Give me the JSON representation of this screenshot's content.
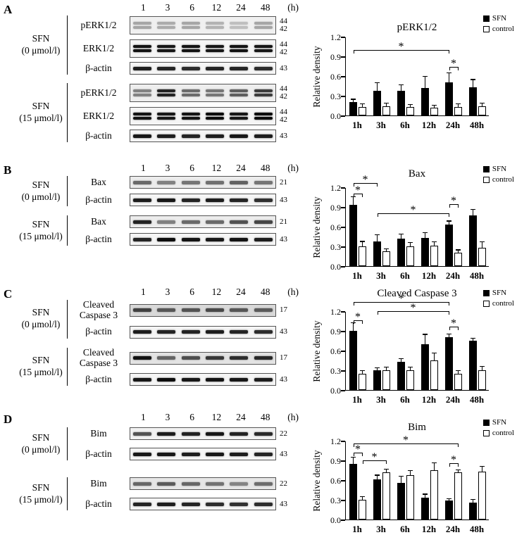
{
  "figure": {
    "time_points": [
      "1",
      "3",
      "6",
      "12",
      "24",
      "48"
    ],
    "time_unit": "(h)",
    "panels": [
      {
        "label": "A",
        "groups": [
          {
            "treatment_line1": "SFN",
            "treatment_line2": "(0 μmol/l)",
            "rows": [
              {
                "protein": "pERK1/2",
                "kda": [
                  "44",
                  "42"
                ],
                "doublet": true,
                "bg": "#f0f0f0",
                "intensities": [
                  0.3,
                  0.28,
                  0.3,
                  0.25,
                  0.2,
                  0.3
                ]
              },
              {
                "protein": "ERK1/2",
                "kda": [
                  "44",
                  "42"
                ],
                "doublet": true,
                "bg": "#f5f5f5",
                "intensities": [
                  0.92,
                  0.9,
                  0.92,
                  0.9,
                  0.92,
                  0.9
                ]
              },
              {
                "protein": "β-actin",
                "kda": [
                  "43"
                ],
                "doublet": false,
                "bg": "#f5f5f5",
                "intensities": [
                  0.88,
                  0.85,
                  0.82,
                  0.85,
                  0.85,
                  0.82
                ]
              }
            ]
          },
          {
            "treatment_line1": "SFN",
            "treatment_line2": "(15 μmol/l)",
            "rows": [
              {
                "protein": "pERK1/2",
                "kda": [
                  "44",
                  "42"
                ],
                "doublet": true,
                "bg": "#eeeeee",
                "intensities": [
                  0.45,
                  0.85,
                  0.55,
                  0.5,
                  0.6,
                  0.75
                ]
              },
              {
                "protein": "ERK1/2",
                "kda": [
                  "44",
                  "42"
                ],
                "doublet": true,
                "bg": "#f5f5f5",
                "intensities": [
                  0.92,
                  0.9,
                  0.92,
                  0.95,
                  0.9,
                  0.95
                ]
              },
              {
                "protein": "β-actin",
                "kda": [
                  "43"
                ],
                "doublet": false,
                "bg": "#f5f5f5",
                "intensities": [
                  0.9,
                  0.88,
                  0.85,
                  0.88,
                  0.9,
                  0.88
                ]
              }
            ]
          }
        ]
      },
      {
        "label": "B",
        "groups": [
          {
            "treatment_line1": "SFN",
            "treatment_line2": "(0 μmol/l)",
            "rows": [
              {
                "protein": "Bax",
                "kda": [
                  "21"
                ],
                "doublet": false,
                "bg": "#ececec",
                "intensities": [
                  0.55,
                  0.45,
                  0.5,
                  0.52,
                  0.58,
                  0.5
                ]
              },
              {
                "protein": "β-actin",
                "kda": [
                  "43"
                ],
                "doublet": false,
                "bg": "#f5f5f5",
                "intensities": [
                  0.88,
                  0.9,
                  0.85,
                  0.88,
                  0.85,
                  0.8
                ]
              }
            ]
          },
          {
            "treatment_line1": "SFN",
            "treatment_line2": "(15 μmol/l)",
            "rows": [
              {
                "protein": "Bax",
                "kda": [
                  "21"
                ],
                "doublet": false,
                "bg": "#ececec",
                "intensities": [
                  0.85,
                  0.45,
                  0.55,
                  0.55,
                  0.65,
                  0.7
                ]
              },
              {
                "protein": "β-actin",
                "kda": [
                  "43"
                ],
                "doublet": false,
                "bg": "#f5f5f5",
                "intensities": [
                  0.85,
                  0.95,
                  0.92,
                  0.9,
                  0.92,
                  0.88
                ]
              }
            ]
          }
        ]
      },
      {
        "label": "C",
        "groups": [
          {
            "treatment_line1": "SFN",
            "treatment_line2": "(0 μmol/l)",
            "rows": [
              {
                "protein": "Cleaved Caspase 3",
                "kda": [
                  "17"
                ],
                "doublet": false,
                "bg": "#d9d9d9",
                "intensities": [
                  0.7,
                  0.6,
                  0.62,
                  0.66,
                  0.6,
                  0.58
                ]
              },
              {
                "protein": "β-actin",
                "kda": [
                  "43"
                ],
                "doublet": false,
                "bg": "#f5f5f5",
                "intensities": [
                  0.88,
                  0.85,
                  0.85,
                  0.88,
                  0.85,
                  0.82
                ]
              }
            ]
          },
          {
            "treatment_line1": "SFN",
            "treatment_line2": "(15 μmol/l)",
            "rows": [
              {
                "protein": "Cleaved Caspase 3",
                "kda": [
                  "17"
                ],
                "doublet": false,
                "bg": "#e3e3e3",
                "intensities": [
                  0.92,
                  0.55,
                  0.65,
                  0.75,
                  0.8,
                  0.82
                ]
              },
              {
                "protein": "β-actin",
                "kda": [
                  "43"
                ],
                "doublet": false,
                "bg": "#f5f5f5",
                "intensities": [
                  0.9,
                  0.95,
                  0.9,
                  0.92,
                  0.9,
                  0.88
                ]
              }
            ]
          }
        ]
      },
      {
        "label": "D",
        "groups": [
          {
            "treatment_line1": "SFN",
            "treatment_line2": "(0 μmol/l)",
            "rows": [
              {
                "protein": "Bim",
                "kda": [
                  "22"
                ],
                "doublet": false,
                "bg": "#f2f2f2",
                "intensities": [
                  0.65,
                  0.88,
                  0.85,
                  0.9,
                  0.85,
                  0.82
                ]
              },
              {
                "protein": "β-actin",
                "kda": [
                  "43"
                ],
                "doublet": false,
                "bg": "#f5f5f5",
                "intensities": [
                  0.9,
                  0.9,
                  0.88,
                  0.9,
                  0.88,
                  0.85
                ]
              }
            ]
          },
          {
            "treatment_line1": "SFN",
            "treatment_line2": "(15 μmol/l)",
            "rows": [
              {
                "protein": "Bim",
                "kda": [
                  "22"
                ],
                "doublet": false,
                "bg": "#e6e6e6",
                "intensities": [
                  0.55,
                  0.6,
                  0.55,
                  0.5,
                  0.42,
                  0.52
                ]
              },
              {
                "protein": "β-actin",
                "kda": [
                  "43"
                ],
                "doublet": false,
                "bg": "#f5f5f5",
                "intensities": [
                  0.85,
                  0.88,
                  0.85,
                  0.82,
                  0.8,
                  0.82
                ]
              }
            ]
          }
        ]
      }
    ]
  },
  "chart_data": [
    {
      "type": "bar",
      "panel": "A",
      "title": "pERK1/2",
      "ylabel": "Relative density",
      "ylim": [
        0,
        1.2
      ],
      "yticks": [
        "0.0",
        "0.3",
        "0.6",
        "0.9",
        "1.2"
      ],
      "categories": [
        "1h",
        "3h",
        "6h",
        "12h",
        "24h",
        "48h"
      ],
      "legend_position": "top-right",
      "series": [
        {
          "name": "SFN",
          "fill": "#000000",
          "values": [
            0.2,
            0.38,
            0.37,
            0.42,
            0.5,
            0.43
          ],
          "errors": [
            0.05,
            0.12,
            0.1,
            0.18,
            0.15,
            0.12
          ]
        },
        {
          "name": "control",
          "fill": "#ffffff",
          "values": [
            0.13,
            0.14,
            0.13,
            0.12,
            0.13,
            0.14
          ],
          "errors": [
            0.05,
            0.05,
            0.04,
            0.04,
            0.05,
            0.05
          ]
        }
      ],
      "significance": [
        {
          "x1": [
            0,
            0
          ],
          "x2": [
            4,
            0
          ],
          "y": 1.0,
          "label": "*"
        },
        {
          "x1": [
            4,
            0
          ],
          "x2": [
            4,
            1
          ],
          "y": 0.74,
          "label": "*"
        }
      ]
    },
    {
      "type": "bar",
      "panel": "B",
      "title": "Bax",
      "ylabel": "Relative density",
      "ylim": [
        0,
        1.2
      ],
      "yticks": [
        "0.0",
        "0.3",
        "0.6",
        "0.9",
        "1.2"
      ],
      "categories": [
        "1h",
        "3h",
        "6h",
        "12h",
        "24h",
        "48h"
      ],
      "legend_position": "top-right",
      "series": [
        {
          "name": "SFN",
          "fill": "#000000",
          "values": [
            0.93,
            0.38,
            0.42,
            0.43,
            0.63,
            0.77
          ],
          "errors": [
            0.13,
            0.1,
            0.07,
            0.08,
            0.06,
            0.1
          ]
        },
        {
          "name": "control",
          "fill": "#ffffff",
          "values": [
            0.3,
            0.22,
            0.3,
            0.31,
            0.2,
            0.28
          ],
          "errors": [
            0.08,
            0.05,
            0.06,
            0.06,
            0.05,
            0.09
          ]
        }
      ],
      "significance": [
        {
          "x1": [
            0,
            0
          ],
          "x2": [
            0,
            1
          ],
          "y": 1.1,
          "label": "*"
        },
        {
          "x1": [
            0,
            0
          ],
          "x2": [
            1,
            0
          ],
          "y": 1.26,
          "label": "*"
        },
        {
          "x1": [
            1,
            0
          ],
          "x2": [
            4,
            0
          ],
          "y": 0.8,
          "label": "*"
        },
        {
          "x1": [
            4,
            0
          ],
          "x2": [
            4,
            1
          ],
          "y": 0.94,
          "label": "*"
        }
      ]
    },
    {
      "type": "bar",
      "panel": "C",
      "title": "Cleaved Caspase 3",
      "ylabel": "Relative density",
      "ylim": [
        0,
        1.2
      ],
      "yticks": [
        "0.0",
        "0.3",
        "0.6",
        "0.9",
        "1.2"
      ],
      "categories": [
        "1h",
        "3h",
        "6h",
        "12h",
        "24h",
        "48h"
      ],
      "legend_position": "top-right",
      "series": [
        {
          "name": "SFN",
          "fill": "#000000",
          "values": [
            0.9,
            0.3,
            0.43,
            0.7,
            0.8,
            0.75
          ],
          "errors": [
            0.13,
            0.04,
            0.05,
            0.15,
            0.06,
            0.04
          ]
        },
        {
          "name": "control",
          "fill": "#ffffff",
          "values": [
            0.25,
            0.3,
            0.3,
            0.45,
            0.25,
            0.3
          ],
          "errors": [
            0.05,
            0.05,
            0.05,
            0.12,
            0.05,
            0.06
          ]
        }
      ],
      "significance": [
        {
          "x1": [
            0,
            0
          ],
          "x2": [
            0,
            1
          ],
          "y": 1.06,
          "label": "*"
        },
        {
          "x1": [
            0,
            0
          ],
          "x2": [
            4,
            0
          ],
          "y": 1.34,
          "label": "*"
        },
        {
          "x1": [
            1,
            0
          ],
          "x2": [
            4,
            0
          ],
          "y": 1.2,
          "label": "*"
        },
        {
          "x1": [
            4,
            0
          ],
          "x2": [
            4,
            1
          ],
          "y": 0.96,
          "label": "*"
        }
      ]
    },
    {
      "type": "bar",
      "panel": "D",
      "title": "Bim",
      "ylabel": "Relative density",
      "ylim": [
        0,
        1.2
      ],
      "yticks": [
        "0.0",
        "0.3",
        "0.6",
        "0.9",
        "1.2"
      ],
      "categories": [
        "1h",
        "3h",
        "6h",
        "12h",
        "24h",
        "48h"
      ],
      "legend_position": "top-right",
      "series": [
        {
          "name": "SFN",
          "fill": "#000000",
          "values": [
            0.85,
            0.61,
            0.56,
            0.33,
            0.29,
            0.26
          ],
          "errors": [
            0.1,
            0.07,
            0.1,
            0.06,
            0.03,
            0.05
          ]
        },
        {
          "name": "control",
          "fill": "#ffffff",
          "values": [
            0.3,
            0.72,
            0.67,
            0.75,
            0.72,
            0.73
          ],
          "errors": [
            0.05,
            0.05,
            0.08,
            0.12,
            0.04,
            0.08
          ]
        }
      ],
      "significance": [
        {
          "x1": [
            0,
            0
          ],
          "x2": [
            0,
            1
          ],
          "y": 1.02,
          "label": "*"
        },
        {
          "x1": [
            0,
            1
          ],
          "x2": [
            1,
            1
          ],
          "y": 0.9,
          "label": "*"
        },
        {
          "x1": [
            0,
            0
          ],
          "x2": [
            4,
            1
          ],
          "y": 1.16,
          "label": "*"
        },
        {
          "x1": [
            4,
            0
          ],
          "x2": [
            4,
            1
          ],
          "y": 0.86,
          "label": "*"
        }
      ]
    }
  ]
}
